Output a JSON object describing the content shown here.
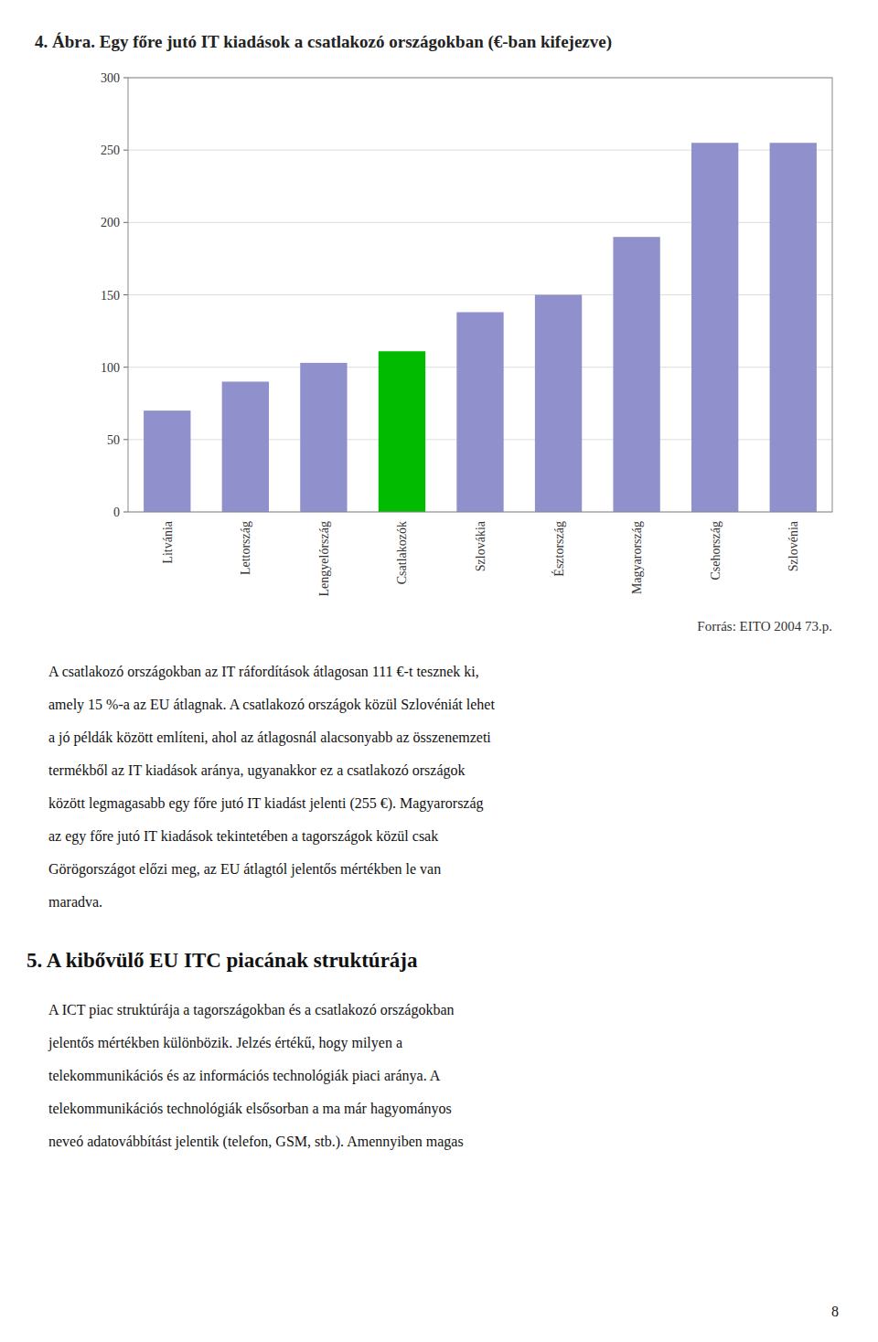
{
  "chart_data": {
    "type": "bar",
    "title": "4. Ábra. Egy főre jutó IT kiadások a csatlakozó országokban (€-ban kifejezve)",
    "categories": [
      "Litvánia",
      "Lettország",
      "Lengyelórszág",
      "Csatlakozók",
      "Szlovákia",
      "Észtország",
      "Magyarország",
      "Csehország",
      "Szlovénia"
    ],
    "values": [
      70,
      90,
      103,
      111,
      138,
      150,
      190,
      255,
      255
    ],
    "colors": [
      "#9090cc",
      "#9090cc",
      "#9090cc",
      "#00bb00",
      "#9090cc",
      "#9090cc",
      "#9090cc",
      "#9090cc",
      "#9090cc"
    ],
    "ylim": [
      0,
      300
    ],
    "yticks": [
      0,
      50,
      100,
      150,
      200,
      250,
      300
    ],
    "grid": true,
    "annotations": [
      "Forrás: EITO 2004 73.p."
    ]
  },
  "text": {
    "paragraph_1": [
      "A csatlakozó országokban az IT ráfordítások átlagosan 111 €-t tesznek ki,",
      "amely 15 %-a az EU átlagnak. A csatlakozó országok közül Szlovéniát lehet",
      "a jó példák között említeni, ahol az átlagosnál alacsonyabb az összenemzeti",
      "termékből az IT kiadások aránya, ugyanakkor ez a csatlakozó országok",
      "között legmagasabb egy főre jutó IT kiadást jelenti (255 €). Magyarország",
      "az egy főre jutó IT kiadások tekintetében a tagországok közül csak",
      "Görögországot előzi meg, az EU átlagtól jelentős mértékben le van",
      "maradva."
    ],
    "section_title": "5. A kibővülő EU ITC piacának struktúrája",
    "paragraph_2": [
      "A ICT piac struktúrája a tagországokban és a csatlakozó országokban",
      "jelentős mértékben különbözik. Jelzés értékű, hogy milyen a",
      "telekommunikációs és az információs technológiák piaci aránya. A",
      "telekommunikációs technológiák elsősorban a ma már hagyományos",
      "neveó adatovábbítást jelentik (telefon, GSM, stb.). Amennyiben magas"
    ],
    "page_number": "8"
  }
}
